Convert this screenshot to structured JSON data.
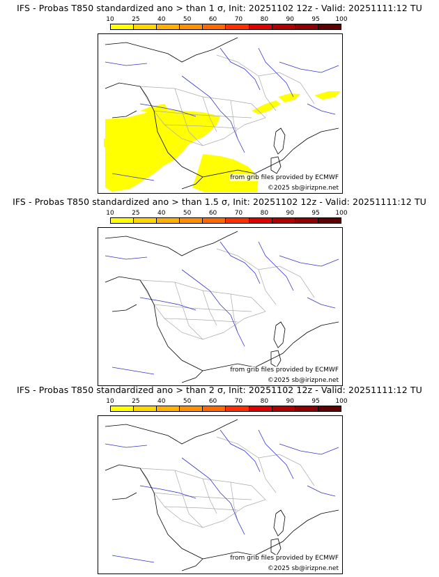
{
  "legend": {
    "ticks": [
      "10",
      "25",
      "40",
      "50",
      "60",
      "70",
      "80",
      "90",
      "95",
      "100"
    ],
    "colors": [
      "#ffff00",
      "#ffd700",
      "#ffb000",
      "#ff9000",
      "#ff6a00",
      "#ff3000",
      "#e00000",
      "#b00000",
      "#900000",
      "#600000"
    ]
  },
  "credits": {
    "source": "from grib files provided by ECMWF",
    "copyright": "©2025 sb@irizpne.net"
  },
  "panels": [
    {
      "title": "IFS - Probas T850  standardized ano > than 1 σ, Init: 20251102 12z - Valid: 20251111:12 TU"
    },
    {
      "title": "IFS - Probas T850  standardized ano > than 1.5 σ, Init: 20251102 12z - Valid: 20251111:12 TU"
    },
    {
      "title": "IFS - Probas T850  standardized ano > than 2 σ, Init: 20251102 12z - Valid: 20251111:12 TU"
    }
  ],
  "map": {
    "coast_color": "#000000",
    "river_color": "#3333cc",
    "border_color": "#aaaaaa",
    "anomaly_color": "#ffff00"
  }
}
